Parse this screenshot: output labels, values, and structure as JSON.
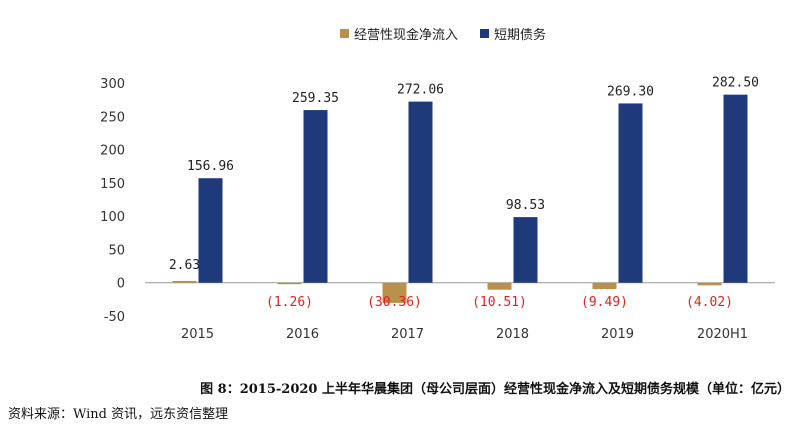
{
  "chart_data": {
    "type": "bar",
    "title": "",
    "xlabel": "",
    "ylabel": "",
    "ylim": [
      -50,
      300
    ],
    "yticks": [
      -50,
      0,
      50,
      100,
      150,
      200,
      250,
      300
    ],
    "categories": [
      "2015",
      "2016",
      "2017",
      "2018",
      "2019",
      "2020H1"
    ],
    "series": [
      {
        "name": "经营性现金净流入",
        "color": "#b8924a",
        "values": [
          2.63,
          -1.26,
          -30.36,
          -10.51,
          -9.49,
          -4.02
        ],
        "labels": [
          "2.63",
          "(1.26)",
          "(30.36)",
          "(10.51)",
          "(9.49)",
          "(4.02)"
        ]
      },
      {
        "name": "短期债务",
        "color": "#1f3a7a",
        "values": [
          156.96,
          259.35,
          272.06,
          98.53,
          269.3,
          282.5
        ],
        "labels": [
          "156.96",
          "259.35",
          "272.06",
          "98.53",
          "269.30",
          "282.50"
        ]
      }
    ],
    "negative_label_color": "#e0231f",
    "legend_position": "top"
  },
  "caption": "图 8：2015-2020 上半年华晨集团（母公司层面）经营性现金净流入及短期债务规模（单位：亿元）",
  "source": "资料来源：Wind 资讯，远东资信整理"
}
